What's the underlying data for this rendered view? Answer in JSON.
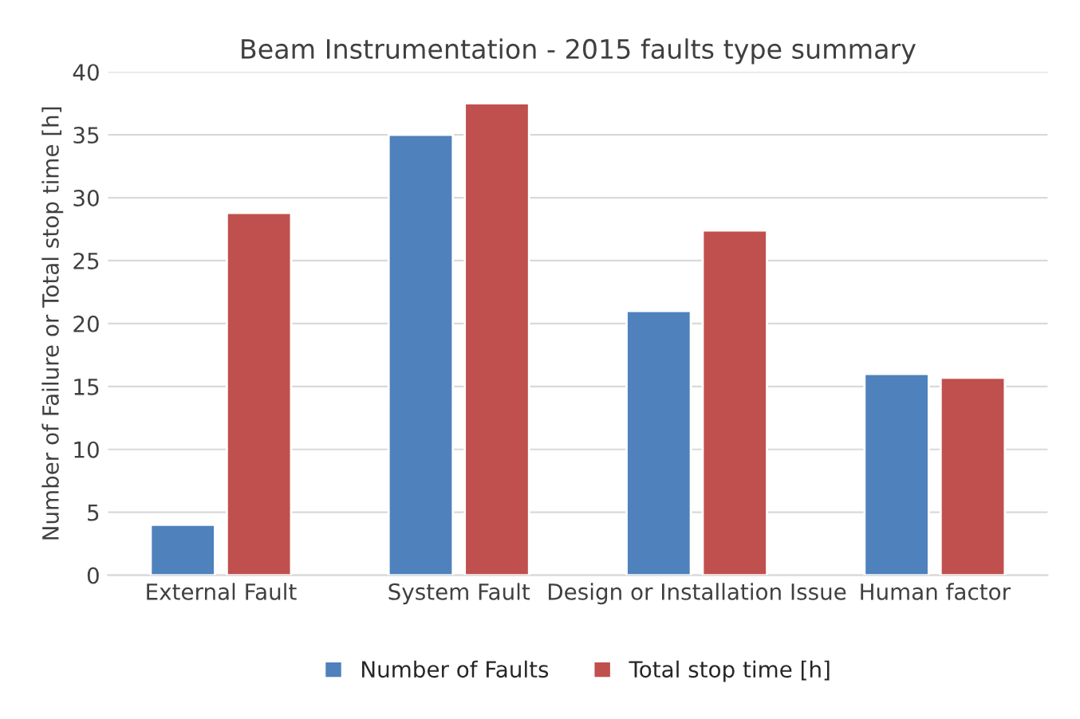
{
  "chart_data": {
    "type": "bar",
    "title": "Beam Instrumentation - 2015 faults type summary",
    "ylabel": "Number of Failure or Total stop time [h]",
    "categories": [
      "External Fault",
      "System Fault",
      "Design or Installation Issue",
      "Human factor"
    ],
    "series": [
      {
        "name": "Number of Faults",
        "color": "#4f81bd",
        "values": [
          4,
          35,
          21,
          16
        ]
      },
      {
        "name": "Total stop time [h]",
        "color": "#c0504d",
        "values": [
          28.8,
          37.5,
          27.4,
          15.7
        ]
      }
    ],
    "ylim": [
      0,
      40
    ],
    "yticks": [
      0,
      5,
      10,
      15,
      20,
      25,
      30,
      35,
      40
    ],
    "grid": "y",
    "legend": "bottom"
  }
}
